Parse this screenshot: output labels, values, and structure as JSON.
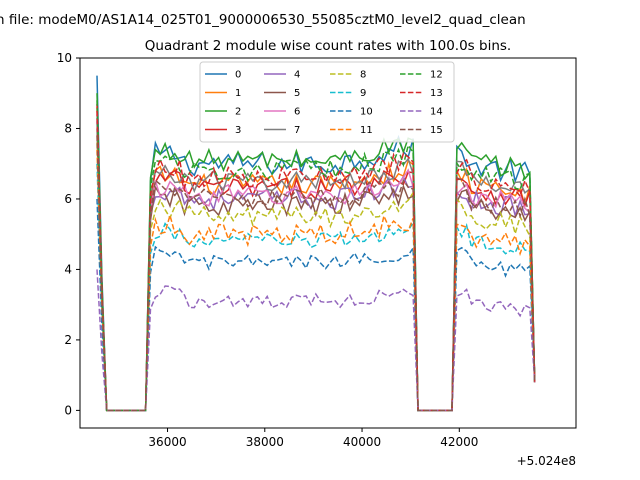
{
  "chart_data": {
    "type": "line",
    "figure_title": "n file: modeM0/AS1A14_025T01_9000006530_55085cztM0_level2_quad_clean",
    "title": "Quadrant 2 module wise count rates with 100.0s bins.",
    "xlabel": "",
    "ylabel": "",
    "x_offset_label": "+5.024e8",
    "xlim": [
      34200,
      44400
    ],
    "ylim": [
      -0.5,
      10
    ],
    "x_ticks": [
      36000,
      38000,
      40000,
      42000
    ],
    "y_ticks": [
      0,
      2,
      4,
      6,
      8,
      10
    ],
    "legend": {
      "position": "top-center",
      "columns": 4
    },
    "segments": [
      [
        34550,
        35600
      ],
      [
        41050,
        41950
      ],
      [
        43500,
        43560
      ]
    ],
    "gaps": [
      [
        34720,
        35560
      ],
      [
        41150,
        41850
      ]
    ],
    "series": [
      {
        "name": "0",
        "color": "#1f77b4",
        "style": "solid",
        "start": 9.5,
        "level": 7.0,
        "trend": 0.02,
        "noise": 0.35
      },
      {
        "name": "1",
        "color": "#ff7f0e",
        "style": "solid",
        "start": 8.6,
        "level": 6.4,
        "trend": 0.0,
        "noise": 0.3
      },
      {
        "name": "2",
        "color": "#2ca02c",
        "style": "solid",
        "start": 9.0,
        "level": 7.1,
        "trend": 0.0,
        "noise": 0.3
      },
      {
        "name": "3",
        "color": "#d62728",
        "style": "solid",
        "start": 8.7,
        "level": 6.3,
        "trend": 0.0,
        "noise": 0.3
      },
      {
        "name": "4",
        "color": "#9467bd",
        "style": "solid",
        "start": 8.2,
        "level": 6.0,
        "trend": 0.0,
        "noise": 0.3
      },
      {
        "name": "5",
        "color": "#8c564b",
        "style": "solid",
        "start": 8.0,
        "level": 5.8,
        "trend": 0.0,
        "noise": 0.3
      },
      {
        "name": "6",
        "color": "#e377c2",
        "style": "solid",
        "start": 8.4,
        "level": 6.1,
        "trend": 0.0,
        "noise": 0.3
      },
      {
        "name": "7",
        "color": "#7f7f7f",
        "style": "solid",
        "start": 8.3,
        "level": 6.5,
        "trend": 0.0,
        "noise": 0.3
      },
      {
        "name": "8",
        "color": "#bcbd22",
        "style": "dashed",
        "start": 7.6,
        "level": 5.5,
        "trend": 0.0,
        "noise": 0.3
      },
      {
        "name": "9",
        "color": "#17becf",
        "style": "dashed",
        "start": 7.0,
        "level": 4.8,
        "trend": 0.0,
        "noise": 0.25
      },
      {
        "name": "10",
        "color": "#1f77b4",
        "style": "dashed",
        "start": 6.0,
        "level": 4.2,
        "trend": 0.0,
        "noise": 0.2
      },
      {
        "name": "11",
        "color": "#ff7f0e",
        "style": "dashed",
        "start": 7.4,
        "level": 5.0,
        "trend": 0.0,
        "noise": 0.3
      },
      {
        "name": "12",
        "color": "#2ca02c",
        "style": "dashed",
        "start": 8.8,
        "level": 6.8,
        "trend": 0.0,
        "noise": 0.3
      },
      {
        "name": "13",
        "color": "#d62728",
        "style": "dashed",
        "start": 8.5,
        "level": 6.6,
        "trend": 0.0,
        "noise": 0.3
      },
      {
        "name": "14",
        "color": "#9467bd",
        "style": "dashed",
        "start": 4.0,
        "level": 3.1,
        "trend": 0.0,
        "noise": 0.2
      },
      {
        "name": "15",
        "color": "#8c564b",
        "style": "dashed",
        "start": 7.8,
        "level": 6.0,
        "trend": 0.0,
        "noise": 0.3
      }
    ]
  }
}
